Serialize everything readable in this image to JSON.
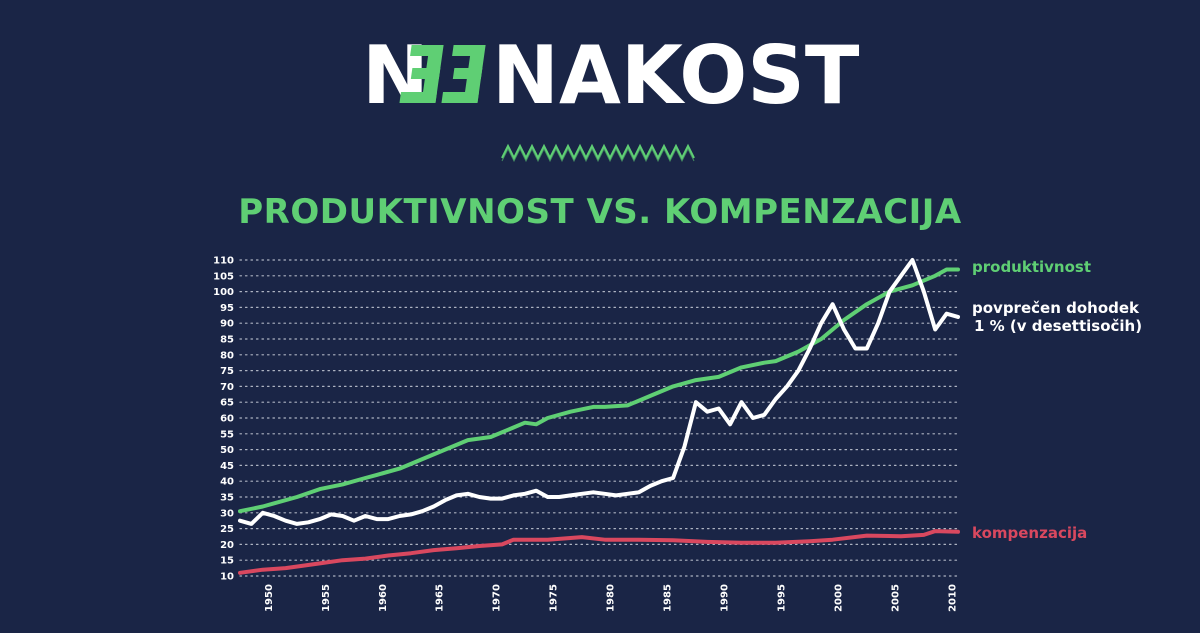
{
  "header": {
    "logo_text": "NEENAKOST",
    "logo_pre": "N",
    "logo_post": "NAKOST",
    "logo_accent_color": "#5fcf74",
    "decor": "zigzag-divider"
  },
  "colors": {
    "background": "#1a2546",
    "productivity": "#5fcf74",
    "income": "#ffffff",
    "compensation": "#d9485f",
    "grid": "#c8cdd8"
  },
  "chart_data": {
    "type": "line",
    "title": "PRODUKTIVNOST VS. KOMPENZACIJA",
    "xlabel": "",
    "ylabel": "",
    "xlim": [
      1948,
      2011
    ],
    "ylim": [
      10,
      110
    ],
    "grid": "horizontal-dotted",
    "y_ticks": [
      10,
      15,
      20,
      25,
      30,
      35,
      40,
      45,
      50,
      55,
      60,
      65,
      70,
      75,
      80,
      85,
      90,
      95,
      100,
      105,
      110
    ],
    "x_ticks": [
      1950,
      1955,
      1960,
      1965,
      1970,
      1975,
      1980,
      1985,
      1990,
      1995,
      2000,
      2005,
      2010
    ],
    "series": [
      {
        "name": "produktivnost",
        "color": "#5fcf74",
        "points": [
          [
            1948,
            30.5
          ],
          [
            1950,
            32
          ],
          [
            1951,
            33
          ],
          [
            1953,
            35
          ],
          [
            1955,
            37.5
          ],
          [
            1957,
            39
          ],
          [
            1959,
            41
          ],
          [
            1960,
            42
          ],
          [
            1962,
            44
          ],
          [
            1964,
            47
          ],
          [
            1966,
            50
          ],
          [
            1968,
            53
          ],
          [
            1970,
            54
          ],
          [
            1972,
            57
          ],
          [
            1973,
            58.5
          ],
          [
            1974,
            58
          ],
          [
            1975,
            60
          ],
          [
            1977,
            62
          ],
          [
            1979,
            63.5
          ],
          [
            1980,
            63.5
          ],
          [
            1982,
            64
          ],
          [
            1984,
            67
          ],
          [
            1986,
            70
          ],
          [
            1988,
            72
          ],
          [
            1990,
            73
          ],
          [
            1992,
            76
          ],
          [
            1994,
            77.5
          ],
          [
            1995,
            78
          ],
          [
            1997,
            81
          ],
          [
            1999,
            85
          ],
          [
            2001,
            91
          ],
          [
            2003,
            96
          ],
          [
            2005,
            100
          ],
          [
            2007,
            102
          ],
          [
            2009,
            105
          ],
          [
            2010,
            107
          ],
          [
            2011,
            107
          ]
        ]
      },
      {
        "name": "povprečen dohodek 1 % (v desettisočih)",
        "label_lines": [
          "povprečen dohodek",
          "1 % (v desettisočih)"
        ],
        "color": "#ffffff",
        "points": [
          [
            1948,
            27.5
          ],
          [
            1949,
            26.5
          ],
          [
            1950,
            30
          ],
          [
            1951,
            29
          ],
          [
            1952,
            27.5
          ],
          [
            1953,
            26.5
          ],
          [
            1954,
            27
          ],
          [
            1955,
            28
          ],
          [
            1956,
            29.5
          ],
          [
            1957,
            29
          ],
          [
            1958,
            27.5
          ],
          [
            1959,
            29
          ],
          [
            1960,
            28
          ],
          [
            1961,
            28
          ],
          [
            1962,
            29
          ],
          [
            1963,
            29.5
          ],
          [
            1964,
            30.5
          ],
          [
            1965,
            32
          ],
          [
            1966,
            34
          ],
          [
            1967,
            35.5
          ],
          [
            1968,
            36
          ],
          [
            1969,
            35
          ],
          [
            1970,
            34.5
          ],
          [
            1971,
            34.5
          ],
          [
            1972,
            35.5
          ],
          [
            1973,
            36
          ],
          [
            1974,
            37
          ],
          [
            1975,
            35
          ],
          [
            1976,
            35
          ],
          [
            1977,
            35.5
          ],
          [
            1978,
            36
          ],
          [
            1979,
            36.5
          ],
          [
            1980,
            36
          ],
          [
            1981,
            35.5
          ],
          [
            1982,
            36
          ],
          [
            1983,
            36.5
          ],
          [
            1984,
            38.5
          ],
          [
            1985,
            40
          ],
          [
            1986,
            41
          ],
          [
            1987,
            51
          ],
          [
            1988,
            65
          ],
          [
            1989,
            62
          ],
          [
            1990,
            63
          ],
          [
            1991,
            58
          ],
          [
            1992,
            65
          ],
          [
            1993,
            60
          ],
          [
            1994,
            61
          ],
          [
            1995,
            66
          ],
          [
            1996,
            70
          ],
          [
            1997,
            75
          ],
          [
            1998,
            82
          ],
          [
            1999,
            90
          ],
          [
            2000,
            96
          ],
          [
            2001,
            88
          ],
          [
            2002,
            82
          ],
          [
            2003,
            82
          ],
          [
            2004,
            90
          ],
          [
            2005,
            100
          ],
          [
            2006,
            105
          ],
          [
            2007,
            110
          ],
          [
            2008,
            100
          ],
          [
            2009,
            88
          ],
          [
            2010,
            93
          ],
          [
            2011,
            92
          ]
        ]
      },
      {
        "name": "kompenzacija",
        "color": "#d9485f",
        "points": [
          [
            1948,
            11
          ],
          [
            1950,
            12
          ],
          [
            1952,
            12.5
          ],
          [
            1955,
            14
          ],
          [
            1957,
            15
          ],
          [
            1959,
            15.5
          ],
          [
            1961,
            16.5
          ],
          [
            1963,
            17.2
          ],
          [
            1965,
            18.2
          ],
          [
            1967,
            18.8
          ],
          [
            1969,
            19.5
          ],
          [
            1971,
            20
          ],
          [
            1972,
            21.5
          ],
          [
            1975,
            21.5
          ],
          [
            1978,
            22.3
          ],
          [
            1980,
            21.5
          ],
          [
            1983,
            21.5
          ],
          [
            1986,
            21.3
          ],
          [
            1989,
            20.8
          ],
          [
            1992,
            20.5
          ],
          [
            1995,
            20.5
          ],
          [
            1998,
            21
          ],
          [
            2000,
            21.5
          ],
          [
            2003,
            22.8
          ],
          [
            2006,
            22.6
          ],
          [
            2008,
            23
          ],
          [
            2009,
            24.2
          ],
          [
            2011,
            24
          ]
        ]
      }
    ]
  }
}
